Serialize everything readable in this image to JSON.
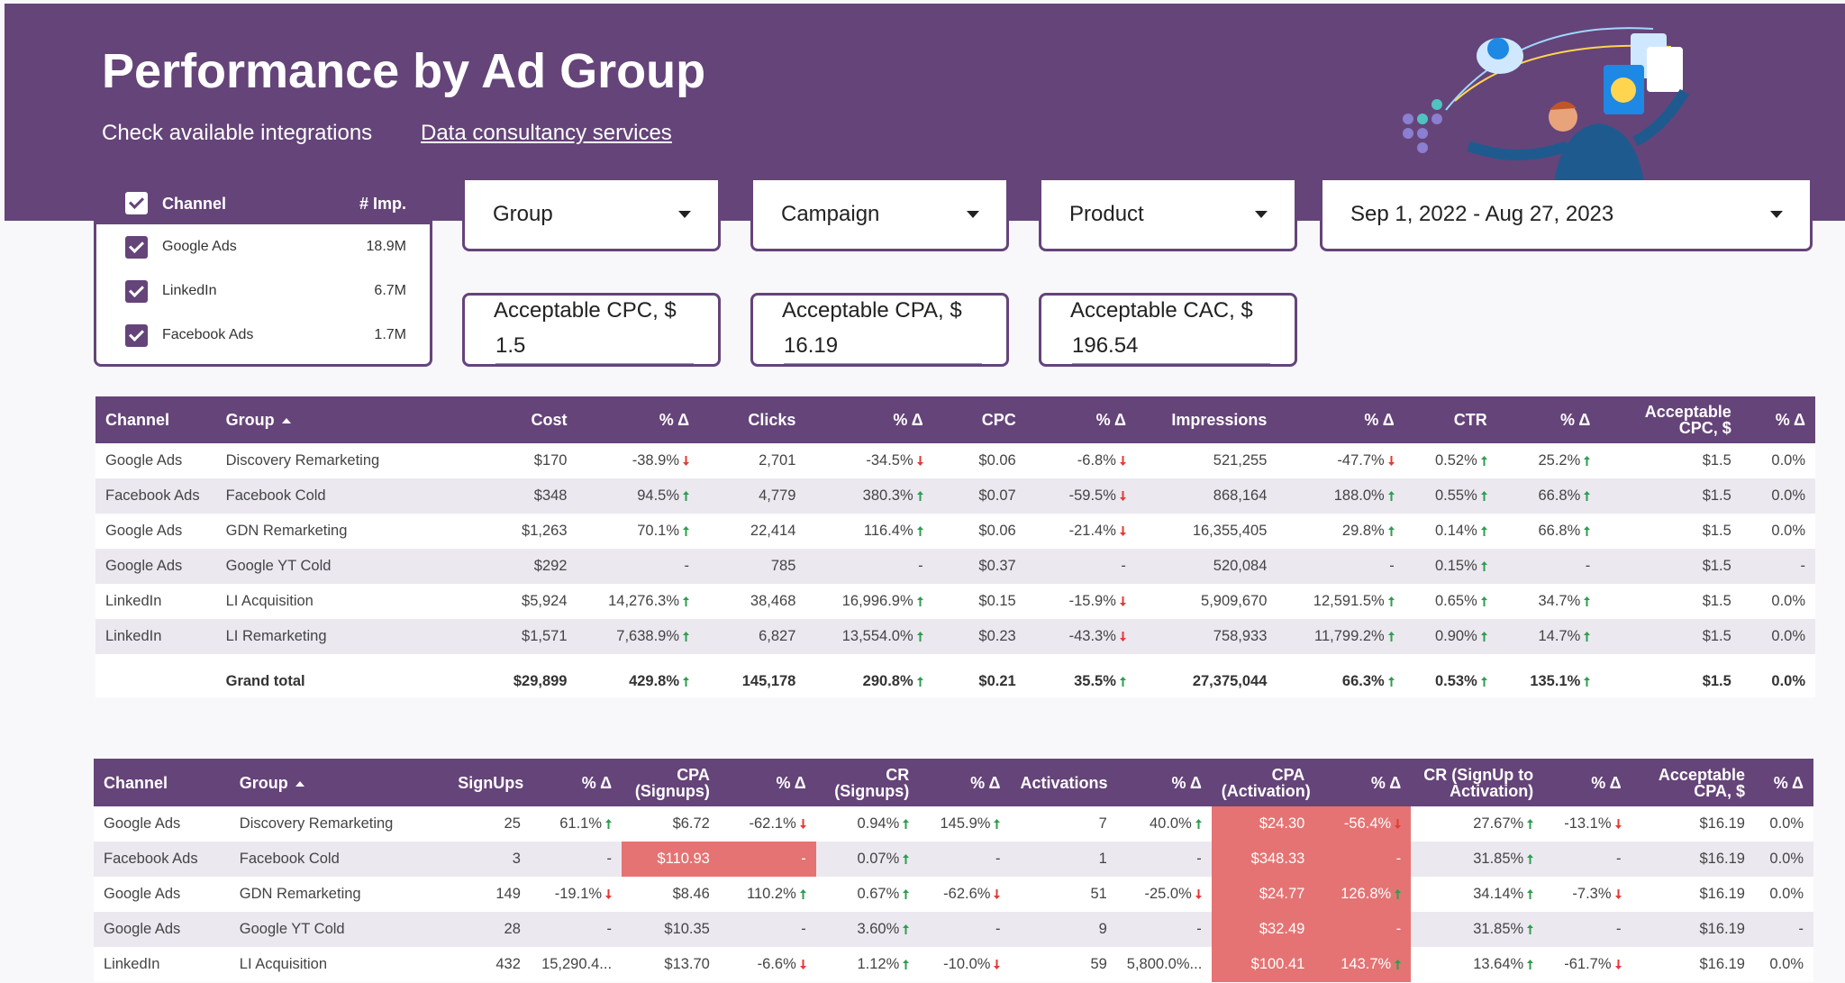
{
  "header": {
    "title": "Performance by Ad Group",
    "links": [
      "Check available integrations",
      "Data consultancy services"
    ]
  },
  "filters": {
    "channel_list": {
      "columns": [
        "Channel",
        "# Imp."
      ],
      "rows": [
        [
          "Google Ads",
          "18.9M"
        ],
        [
          "LinkedIn",
          "6.7M"
        ],
        [
          "Facebook Ads",
          "1.7M"
        ]
      ]
    },
    "dropdowns": [
      "Group",
      "Campaign",
      "Product",
      "Sep 1, 2022 - Aug 27, 2023"
    ],
    "inputs": [
      {
        "label": "Acceptable CPC, $",
        "value": 1.5
      },
      {
        "label": "Acceptable CPA, $",
        "value": 16.19
      },
      {
        "label": "Acceptable CAC, $",
        "value": 196.54
      }
    ]
  },
  "tables": [
    {
      "columns": [
        "Channel",
        "Group",
        "Cost",
        "% Δ",
        "Clicks",
        "% Δ",
        "CPC",
        "% Δ",
        "Impressions",
        "% Δ",
        "CTR",
        "% Δ",
        "Acceptable CPC, $",
        "% Δ"
      ],
      "sort_column": 1,
      "rows": [
        [
          "Google Ads",
          "Discovery Remarketing",
          "$170",
          "-38.9%",
          "2,701",
          "-34.5%",
          "$0.06",
          "-6.8%",
          "521,255",
          "-47.7%",
          "0.52%",
          "25.2%",
          "$1.5",
          "0.0%"
        ],
        [
          "Facebook Ads",
          "Facebook Cold",
          "$348",
          "94.5%",
          "4,779",
          "380.3%",
          "$0.07",
          "-59.5%",
          "868,164",
          "188.0%",
          "0.55%",
          "66.8%",
          "$1.5",
          "0.0%"
        ],
        [
          "Google Ads",
          "GDN Remarketing",
          "$1,263",
          "70.1%",
          "22,414",
          "116.4%",
          "$0.06",
          "-21.4%",
          "16,355,405",
          "29.8%",
          "0.14%",
          "66.8%",
          "$1.5",
          "0.0%"
        ],
        [
          "Google Ads",
          "Google YT Cold",
          "$292",
          "-",
          "785",
          "-",
          "$0.37",
          "-",
          "520,084",
          "-",
          "0.15%",
          "-",
          "$1.5",
          "-"
        ],
        [
          "LinkedIn",
          "LI Acquisition",
          "$5,924",
          "14,276.3%",
          "38,468",
          "16,996.9%",
          "$0.15",
          "-15.9%",
          "5,909,670",
          "12,591.5%",
          "0.65%",
          "34.7%",
          "$1.5",
          "0.0%"
        ],
        [
          "LinkedIn",
          "LI Remarketing",
          "$1,571",
          "7,638.9%",
          "6,827",
          "13,554.0%",
          "$0.23",
          "-43.3%",
          "758,933",
          "11,799.2%",
          "0.90%",
          "14.7%",
          "$1.5",
          "0.0%"
        ]
      ],
      "total": [
        null,
        "Grand total",
        "$29,899",
        "429.8%",
        "145,178",
        "290.8%",
        "$0.21",
        "35.5%",
        "27,375,044",
        "66.3%",
        "0.53%",
        "135.1%",
        "$1.5",
        "0.0%"
      ],
      "highlighted": []
    },
    {
      "columns": [
        "Channel",
        "Group",
        "SignUps",
        "% Δ",
        "CPA (Signups)",
        "% Δ",
        "CR (Signups)",
        "% Δ",
        "Activations",
        "% Δ",
        "CPA (Activation)",
        "% Δ",
        "CR (SignUp to Activation)",
        "% Δ",
        "Acceptable CPA, $",
        "% Δ"
      ],
      "sort_column": 1,
      "rows": [
        [
          "Google Ads",
          "Discovery Remarketing",
          "25",
          "61.1%",
          "$6.72",
          "-62.1%",
          "0.94%",
          "145.9%",
          "7",
          "40.0%",
          "$24.30",
          "-56.4%",
          "27.67%",
          "-13.1%",
          "$16.19",
          "0.0%"
        ],
        [
          "Facebook Ads",
          "Facebook Cold",
          "3",
          "-",
          "$110.93",
          "-",
          "0.07%",
          "-",
          "1",
          "-",
          "$348.33",
          "-",
          "31.85%",
          "-",
          "$16.19",
          "0.0%"
        ],
        [
          "Google Ads",
          "GDN Remarketing",
          "149",
          "-19.1%",
          "$8.46",
          "110.2%",
          "0.67%",
          "-62.6%",
          "51",
          "-25.0%",
          "$24.77",
          "126.8%",
          "34.14%",
          "-7.3%",
          "$16.19",
          "0.0%"
        ],
        [
          "Google Ads",
          "Google YT Cold",
          "28",
          "-",
          "$10.35",
          "-",
          "3.60%",
          "-",
          "9",
          "-",
          "$32.49",
          "-",
          "31.85%",
          "-",
          "$16.19",
          "-"
        ],
        [
          "LinkedIn",
          "LI Acquisition",
          "432",
          "15,290.4...",
          "$13.70",
          "-6.6%",
          "1.12%",
          "-10.0%",
          "59",
          "5,800.0%...",
          "$100.41",
          "143.7%",
          "13.64%",
          "-61.7%",
          "$16.19",
          "0.0%"
        ]
      ],
      "total": null,
      "highlighted": [
        [
          1,
          4
        ],
        [
          1,
          5
        ],
        [
          0,
          10
        ],
        [
          0,
          11
        ],
        [
          1,
          10
        ],
        [
          1,
          11
        ],
        [
          2,
          10
        ],
        [
          2,
          11
        ],
        [
          3,
          10
        ],
        [
          3,
          11
        ],
        [
          4,
          10
        ],
        [
          4,
          11
        ]
      ]
    }
  ]
}
